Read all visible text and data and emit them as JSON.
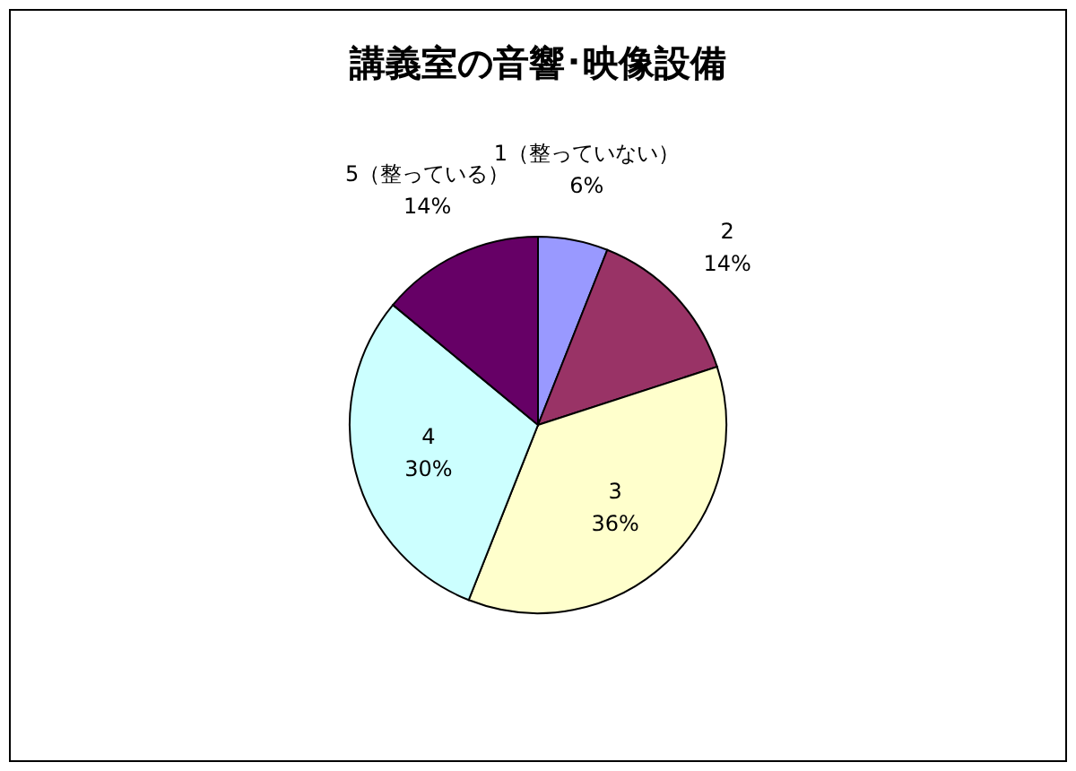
{
  "chart_data": {
    "type": "pie",
    "title": "講義室の音響･映像設備",
    "categories": [
      "1（整っていない）",
      "2",
      "3",
      "4",
      "5（整っている）"
    ],
    "values": [
      6,
      14,
      36,
      30,
      14
    ],
    "value_labels": [
      "6%",
      "14%",
      "36%",
      "30%",
      "14%"
    ],
    "colors": [
      "#9999ff",
      "#993366",
      "#ffffcc",
      "#ccffff",
      "#660066"
    ]
  }
}
